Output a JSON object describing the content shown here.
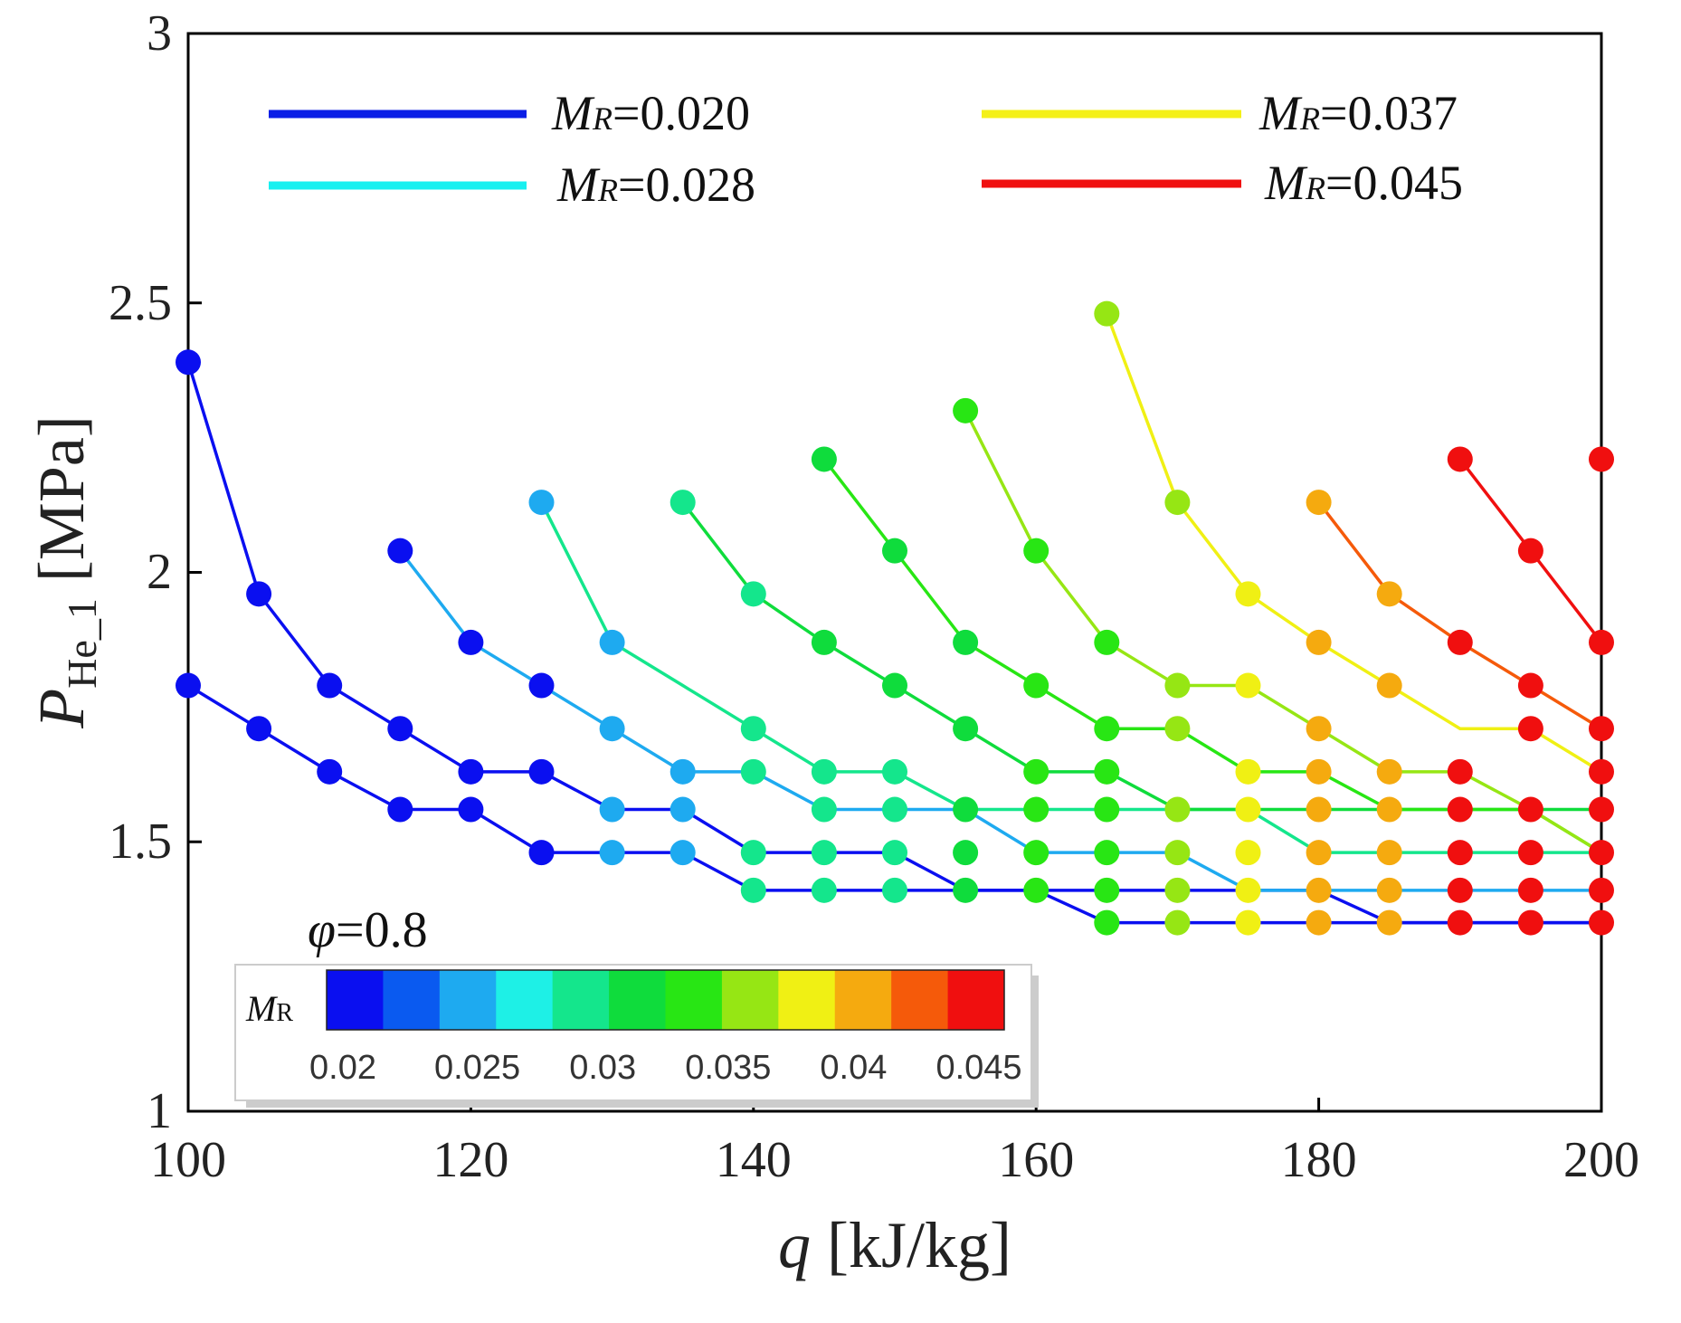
{
  "chart_data": {
    "type": "scatter",
    "title": "",
    "x_axis": {
      "variable": "q",
      "unit": " [kJ/kg]",
      "range": [
        100,
        200
      ],
      "ticks": [
        100,
        120,
        140,
        160,
        180,
        200
      ],
      "tick_labels": [
        "100",
        "120",
        "140",
        "160",
        "180",
        "200"
      ]
    },
    "y_axis": {
      "variable": "P",
      "subscript": "He_1",
      "unit": " [MPa]",
      "range": [
        1,
        3
      ],
      "ticks": [
        1,
        1.5,
        2,
        2.5,
        3
      ],
      "tick_labels": [
        "1",
        "1.5",
        "2",
        "2.5",
        "3"
      ]
    },
    "grid": false,
    "legend": {
      "placement": "top",
      "entries": [
        {
          "symbol": "M",
          "sub": "R",
          "value": "=0.020",
          "color": "#0a1ee6"
        },
        {
          "symbol": "M",
          "sub": "R",
          "value": "=0.028",
          "color": "#18f0f0"
        },
        {
          "symbol": "M",
          "sub": "R",
          "value": "=0.037",
          "color": "#f4f018"
        },
        {
          "symbol": "M",
          "sub": "R",
          "value": "=0.045",
          "color": "#f01010"
        }
      ]
    },
    "annotation": {
      "symbol": "φ",
      "value": "=0.8"
    },
    "colorbar": {
      "label_symbol": "M",
      "label_sub": "R",
      "range": [
        0.02,
        0.045
      ],
      "colors": [
        "#0a0ff0",
        "#0a5af0",
        "#1eaaf0",
        "#1ef0e6",
        "#14e68c",
        "#0fdc3c",
        "#28e614",
        "#96e614",
        "#f0f014",
        "#f5aa0f",
        "#f55a0a",
        "#f00f0f"
      ],
      "ticks": [
        0.02,
        0.025,
        0.03,
        0.035,
        0.04,
        0.045
      ],
      "tick_labels": [
        "0.02",
        "0.025",
        "0.03",
        "0.035",
        "0.04",
        "0.045"
      ]
    },
    "series_markers": [
      {
        "mr": 0.02,
        "points": [
          [
            100,
            1.79
          ],
          [
            105,
            1.71
          ],
          [
            110,
            1.63
          ],
          [
            115,
            1.56
          ],
          [
            120,
            1.56
          ]
        ]
      },
      {
        "mr": 0.02,
        "points": [
          [
            100,
            2.39
          ],
          [
            105,
            1.96
          ],
          [
            110,
            1.79
          ],
          [
            115,
            1.71
          ],
          [
            120,
            1.63
          ]
        ]
      },
      {
        "mr": 0.022,
        "points": [
          [
            115,
            2.04
          ],
          [
            120,
            1.87
          ],
          [
            125,
            1.79
          ],
          [
            125,
            1.63
          ],
          [
            125,
            1.48
          ]
        ]
      },
      {
        "mr": 0.025,
        "points": [
          [
            125,
            2.13
          ],
          [
            130,
            1.87
          ],
          [
            130,
            1.71
          ],
          [
            130,
            1.56
          ],
          [
            130,
            1.48
          ],
          [
            135,
            1.48
          ],
          [
            135,
            1.56
          ],
          [
            135,
            1.63
          ]
        ]
      },
      {
        "mr": 0.029,
        "points": [
          [
            135,
            2.13
          ],
          [
            140,
            1.96
          ],
          [
            140,
            1.71
          ],
          [
            140,
            1.63
          ],
          [
            140,
            1.48
          ],
          [
            140,
            1.41
          ],
          [
            145,
            1.41
          ],
          [
            145,
            1.48
          ],
          [
            145,
            1.56
          ],
          [
            145,
            1.63
          ],
          [
            150,
            1.63
          ],
          [
            150,
            1.56
          ],
          [
            150,
            1.48
          ],
          [
            150,
            1.41
          ]
        ]
      },
      {
        "mr": 0.031,
        "points": [
          [
            145,
            2.21
          ],
          [
            145,
            1.87
          ],
          [
            150,
            2.04
          ],
          [
            150,
            1.79
          ],
          [
            155,
            1.87
          ],
          [
            155,
            1.71
          ],
          [
            155,
            1.56
          ],
          [
            155,
            1.48
          ],
          [
            155,
            1.41
          ]
        ]
      },
      {
        "mr": 0.033,
        "points": [
          [
            155,
            2.3
          ],
          [
            160,
            2.04
          ],
          [
            160,
            1.79
          ],
          [
            160,
            1.63
          ],
          [
            160,
            1.56
          ],
          [
            160,
            1.48
          ],
          [
            160,
            1.41
          ],
          [
            165,
            1.87
          ],
          [
            165,
            1.71
          ],
          [
            165,
            1.63
          ],
          [
            165,
            1.56
          ],
          [
            165,
            1.48
          ],
          [
            165,
            1.41
          ],
          [
            165,
            1.35
          ]
        ]
      },
      {
        "mr": 0.036,
        "points": [
          [
            165,
            2.48
          ],
          [
            170,
            2.13
          ],
          [
            170,
            1.79
          ],
          [
            170,
            1.71
          ],
          [
            170,
            1.56
          ],
          [
            170,
            1.48
          ],
          [
            170,
            1.41
          ],
          [
            170,
            1.35
          ]
        ]
      },
      {
        "mr": 0.038,
        "points": [
          [
            175,
            1.96
          ],
          [
            175,
            1.79
          ],
          [
            175,
            1.63
          ],
          [
            175,
            1.56
          ],
          [
            175,
            1.48
          ],
          [
            175,
            1.41
          ],
          [
            175,
            1.35
          ]
        ]
      },
      {
        "mr": 0.04,
        "points": [
          [
            180,
            2.13
          ],
          [
            180,
            1.87
          ],
          [
            180,
            1.71
          ],
          [
            180,
            1.63
          ],
          [
            180,
            1.56
          ],
          [
            180,
            1.48
          ],
          [
            180,
            1.41
          ],
          [
            180,
            1.35
          ],
          [
            185,
            1.96
          ],
          [
            185,
            1.79
          ],
          [
            185,
            1.63
          ],
          [
            185,
            1.56
          ],
          [
            185,
            1.48
          ],
          [
            185,
            1.41
          ],
          [
            185,
            1.35
          ]
        ]
      },
      {
        "mr": 0.043,
        "points": [
          [
            190,
            2.21
          ],
          [
            190,
            1.87
          ],
          [
            190,
            1.63
          ],
          [
            190,
            1.56
          ],
          [
            190,
            1.48
          ],
          [
            190,
            1.41
          ],
          [
            190,
            1.35
          ],
          [
            195,
            2.04
          ],
          [
            195,
            1.79
          ],
          [
            195,
            1.71
          ],
          [
            195,
            1.56
          ],
          [
            195,
            1.48
          ],
          [
            195,
            1.41
          ],
          [
            195,
            1.35
          ]
        ]
      },
      {
        "mr": 0.045,
        "points": [
          [
            200,
            2.21
          ],
          [
            200,
            1.87
          ],
          [
            200,
            1.71
          ],
          [
            200,
            1.63
          ],
          [
            200,
            1.56
          ],
          [
            200,
            1.48
          ],
          [
            200,
            1.41
          ],
          [
            200,
            1.35
          ]
        ]
      }
    ],
    "series_lines": [
      {
        "mr": 0.02,
        "points": [
          [
            100,
            1.79
          ],
          [
            105,
            1.71
          ],
          [
            110,
            1.63
          ],
          [
            115,
            1.56
          ],
          [
            120,
            1.56
          ],
          [
            125,
            1.48
          ],
          [
            135,
            1.48
          ],
          [
            140,
            1.41
          ],
          [
            160,
            1.41
          ],
          [
            165,
            1.35
          ],
          [
            200,
            1.35
          ]
        ]
      },
      {
        "mr": 0.0215,
        "points": [
          [
            100,
            2.39
          ],
          [
            105,
            1.96
          ],
          [
            110,
            1.79
          ],
          [
            115,
            1.71
          ],
          [
            120,
            1.63
          ],
          [
            125,
            1.63
          ],
          [
            130,
            1.56
          ],
          [
            135,
            1.56
          ],
          [
            140,
            1.48
          ],
          [
            150,
            1.48
          ],
          [
            155,
            1.41
          ],
          [
            180,
            1.41
          ],
          [
            185,
            1.35
          ],
          [
            200,
            1.35
          ]
        ]
      },
      {
        "mr": 0.0255,
        "points": [
          [
            115,
            2.04
          ],
          [
            120,
            1.87
          ],
          [
            125,
            1.79
          ],
          [
            130,
            1.71
          ],
          [
            135,
            1.63
          ],
          [
            140,
            1.63
          ],
          [
            145,
            1.56
          ],
          [
            155,
            1.56
          ],
          [
            160,
            1.48
          ],
          [
            170,
            1.48
          ],
          [
            175,
            1.41
          ],
          [
            200,
            1.41
          ]
        ]
      },
      {
        "mr": 0.0285,
        "points": [
          [
            125,
            2.13
          ],
          [
            130,
            1.87
          ],
          [
            135,
            1.79
          ],
          [
            140,
            1.71
          ],
          [
            145,
            1.63
          ],
          [
            150,
            1.63
          ],
          [
            155,
            1.56
          ],
          [
            175,
            1.56
          ],
          [
            180,
            1.48
          ],
          [
            200,
            1.48
          ]
        ]
      },
      {
        "mr": 0.032,
        "points": [
          [
            135,
            2.13
          ],
          [
            140,
            1.96
          ],
          [
            145,
            1.87
          ],
          [
            150,
            1.79
          ],
          [
            155,
            1.71
          ],
          [
            160,
            1.63
          ],
          [
            165,
            1.63
          ],
          [
            170,
            1.56
          ],
          [
            200,
            1.56
          ]
        ]
      },
      {
        "mr": 0.0335,
        "points": [
          [
            145,
            2.21
          ],
          [
            150,
            2.04
          ],
          [
            155,
            1.87
          ],
          [
            160,
            1.79
          ],
          [
            165,
            1.71
          ],
          [
            170,
            1.71
          ],
          [
            175,
            1.63
          ],
          [
            180,
            1.63
          ],
          [
            185,
            1.56
          ],
          [
            195,
            1.56
          ],
          [
            200,
            1.48
          ]
        ]
      },
      {
        "mr": 0.0355,
        "points": [
          [
            155,
            2.3
          ],
          [
            160,
            2.04
          ],
          [
            165,
            1.87
          ],
          [
            170,
            1.79
          ],
          [
            175,
            1.79
          ],
          [
            180,
            1.71
          ],
          [
            185,
            1.63
          ],
          [
            190,
            1.63
          ],
          [
            195,
            1.56
          ],
          [
            200,
            1.48
          ]
        ]
      },
      {
        "mr": 0.038,
        "points": [
          [
            165,
            2.48
          ],
          [
            170,
            2.13
          ],
          [
            175,
            1.96
          ],
          [
            180,
            1.87
          ],
          [
            185,
            1.79
          ],
          [
            190,
            1.71
          ],
          [
            195,
            1.71
          ],
          [
            200,
            1.63
          ]
        ]
      },
      {
        "mr": 0.041,
        "points": [
          [
            180,
            2.13
          ],
          [
            185,
            1.96
          ],
          [
            190,
            1.87
          ],
          [
            195,
            1.79
          ],
          [
            200,
            1.71
          ]
        ]
      },
      {
        "mr": 0.044,
        "points": [
          [
            190,
            2.21
          ],
          [
            195,
            2.04
          ],
          [
            200,
            1.87
          ]
        ]
      }
    ]
  }
}
